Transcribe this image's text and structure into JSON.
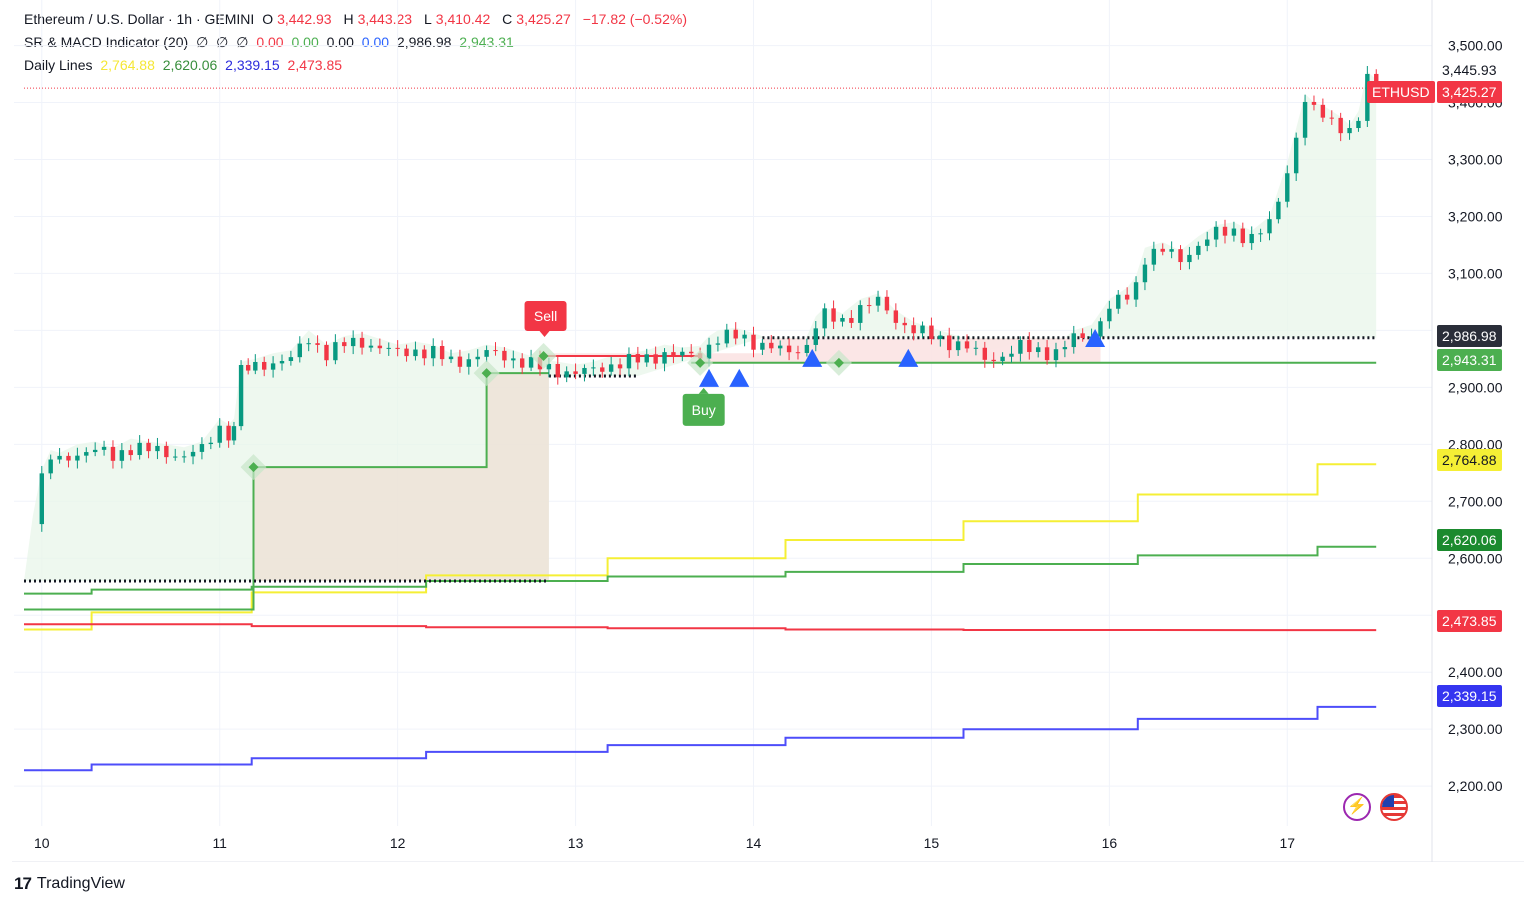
{
  "header": {
    "symbol_line": "Ethereum / U.S. Dollar · 1h · GEMINI",
    "open_label": "O",
    "open": "3,442.93",
    "high_label": "H",
    "high": "3,443.23",
    "low_label": "L",
    "low": "3,410.42",
    "close_label": "C",
    "close": "3,425.27",
    "change": "−17.82 (−0.52%)",
    "indicator1_name": "SR & MACD Indicator (20)",
    "indicator1_values": [
      "∅",
      "∅",
      "∅",
      "0.00",
      "0.00",
      "0.00",
      "0.00",
      "2,986.98",
      "2,943.31"
    ],
    "indicator2_name": "Daily Lines",
    "indicator2_values": [
      "2,764.88",
      "2,620.06",
      "2,339.15",
      "2,473.85"
    ]
  },
  "branding": {
    "logo_text": "TradingView"
  },
  "tags": {
    "ethusd_label": "ETHUSD",
    "ethusd_value": "3,425.27",
    "high_value": "3,445.93",
    "res_value": "2,986.98",
    "sup_value": "2,943.31",
    "yellow_value": "2,764.88",
    "green_value": "2,620.06",
    "red_value": "2,473.85",
    "blue_value": "2,339.15"
  },
  "signals": {
    "sell_label": "Sell",
    "buy_label": "Buy"
  },
  "colors": {
    "up": "#089981",
    "down": "#f23645",
    "yellow": "#f5ef35",
    "green": "#4caf50",
    "red": "#f23645",
    "blue": "#4d4dfa",
    "fill_green": "#e8f5e9",
    "fill_brown": "#ede3d8",
    "fill_red": "#fbe3e3",
    "triangle": "#2962ff"
  },
  "chart_data": {
    "type": "candlestick",
    "x_tick_labels": [
      "10",
      "11",
      "12",
      "13",
      "14",
      "15",
      "16",
      "17"
    ],
    "x_tick_days": [
      10,
      11,
      12,
      13,
      14,
      15,
      16,
      17
    ],
    "x_range_days": [
      9.9,
      17.75
    ],
    "y_tick_labels": [
      "3,500.00",
      "3,400.00",
      "3,300.00",
      "3,200.00",
      "3,100.00",
      "3,000.00",
      "2,900.00",
      "2,800.00",
      "2,700.00",
      "2,600.00",
      "2,500.00",
      "2,400.00",
      "2,300.00",
      "2,200.00"
    ],
    "y_ticks": [
      3500,
      3400,
      3300,
      3200,
      3100,
      3000,
      2900,
      2800,
      2700,
      2600,
      2500,
      2400,
      2300,
      2200
    ],
    "ylim": [
      2130,
      3580
    ],
    "current_price": 3425.27,
    "candle_close_path": [
      [
        9.95,
        2660
      ],
      [
        10.0,
        2740
      ],
      [
        10.05,
        2775
      ],
      [
        10.1,
        2770
      ],
      [
        10.2,
        2785
      ],
      [
        10.3,
        2790
      ],
      [
        10.4,
        2778
      ],
      [
        10.5,
        2795
      ],
      [
        10.6,
        2790
      ],
      [
        10.7,
        2785
      ],
      [
        10.8,
        2780
      ],
      [
        10.9,
        2790
      ],
      [
        11.0,
        2830
      ],
      [
        11.05,
        2820
      ],
      [
        11.08,
        2830
      ],
      [
        11.12,
        2930
      ],
      [
        11.2,
        2935
      ],
      [
        11.3,
        2945
      ],
      [
        11.4,
        2950
      ],
      [
        11.5,
        2985
      ],
      [
        11.6,
        2960
      ],
      [
        11.7,
        2975
      ],
      [
        11.8,
        2980
      ],
      [
        11.9,
        2970
      ],
      [
        12.0,
        2960
      ],
      [
        12.1,
        2965
      ],
      [
        12.2,
        2960
      ],
      [
        12.3,
        2945
      ],
      [
        12.4,
        2950
      ],
      [
        12.5,
        2960
      ],
      [
        12.6,
        2955
      ],
      [
        12.7,
        2945
      ],
      [
        12.8,
        2935
      ],
      [
        12.9,
        2930
      ],
      [
        13.0,
        2925
      ],
      [
        13.1,
        2930
      ],
      [
        13.2,
        2940
      ],
      [
        13.3,
        2945
      ],
      [
        13.4,
        2950
      ],
      [
        13.5,
        2960
      ],
      [
        13.6,
        2955
      ],
      [
        13.7,
        2958
      ],
      [
        13.75,
        2975
      ],
      [
        13.8,
        2985
      ],
      [
        13.9,
        2990
      ],
      [
        14.0,
        2980
      ],
      [
        14.1,
        2970
      ],
      [
        14.2,
        2960
      ],
      [
        14.3,
        2975
      ],
      [
        14.35,
        3010
      ],
      [
        14.4,
        3025
      ],
      [
        14.5,
        3015
      ],
      [
        14.6,
        3040
      ],
      [
        14.7,
        3050
      ],
      [
        14.8,
        3020
      ],
      [
        14.9,
        3000
      ],
      [
        15.0,
        2990
      ],
      [
        15.1,
        2980
      ],
      [
        15.2,
        2970
      ],
      [
        15.3,
        2950
      ],
      [
        15.4,
        2955
      ],
      [
        15.5,
        2970
      ],
      [
        15.6,
        2965
      ],
      [
        15.7,
        2960
      ],
      [
        15.8,
        2985
      ],
      [
        15.9,
        2995
      ],
      [
        16.0,
        3040
      ],
      [
        16.1,
        3060
      ],
      [
        16.15,
        3080
      ],
      [
        16.2,
        3130
      ],
      [
        16.3,
        3140
      ],
      [
        16.4,
        3125
      ],
      [
        16.5,
        3150
      ],
      [
        16.6,
        3170
      ],
      [
        16.7,
        3175
      ],
      [
        16.8,
        3160
      ],
      [
        16.9,
        3185
      ],
      [
        17.0,
        3280
      ],
      [
        17.05,
        3340
      ],
      [
        17.1,
        3400
      ],
      [
        17.15,
        3385
      ],
      [
        17.2,
        3380
      ],
      [
        17.3,
        3360
      ],
      [
        17.35,
        3345
      ],
      [
        17.4,
        3370
      ],
      [
        17.45,
        3440
      ],
      [
        17.5,
        3425
      ]
    ],
    "resistance_levels": [
      {
        "x": [
          9.9,
          12.85
        ],
        "y": 2560
      },
      {
        "x": [
          12.85,
          13.35
        ],
        "y": 2920
      },
      {
        "x": [
          14.05,
          17.5
        ],
        "y": 2986.98
      }
    ],
    "support_steps": [
      [
        9.9,
        2510
      ],
      [
        11.19,
        2510
      ],
      [
        11.19,
        2760
      ],
      [
        12.5,
        2760
      ],
      [
        12.5,
        2925
      ],
      [
        12.85,
        2925
      ]
    ],
    "support_line": {
      "x": [
        13.65,
        17.5
      ],
      "y": 2943.31
    },
    "sell_line": {
      "x": [
        12.8,
        13.7
      ],
      "y": 2955
    },
    "sell_signal": {
      "x": 12.82,
      "y": 2955
    },
    "buy_signal": {
      "x": 13.72,
      "y": 2943
    },
    "diamonds": [
      [
        11.19,
        2760
      ],
      [
        12.5,
        2925
      ],
      [
        12.82,
        2955
      ],
      [
        13.7,
        2943
      ],
      [
        14.48,
        2943
      ]
    ],
    "triangles": [
      [
        13.75,
        2915
      ],
      [
        13.92,
        2915
      ],
      [
        14.33,
        2950
      ],
      [
        14.87,
        2950
      ],
      [
        15.92,
        2985
      ]
    ],
    "daily_series": [
      {
        "color": "yellow",
        "values": [
          [
            9.9,
            2475
          ],
          [
            10.28,
            2475
          ],
          [
            10.28,
            2505
          ],
          [
            11.18,
            2505
          ],
          [
            11.18,
            2540
          ],
          [
            12.16,
            2540
          ],
          [
            12.16,
            2570
          ],
          [
            13.18,
            2570
          ],
          [
            13.18,
            2600
          ],
          [
            14.18,
            2600
          ],
          [
            14.18,
            2632
          ],
          [
            15.18,
            2632
          ],
          [
            15.18,
            2665
          ],
          [
            16.16,
            2665
          ],
          [
            16.16,
            2712
          ],
          [
            17.17,
            2712
          ],
          [
            17.17,
            2764.88
          ],
          [
            17.5,
            2764.88
          ]
        ]
      },
      {
        "color": "green",
        "values": [
          [
            9.9,
            2538
          ],
          [
            10.28,
            2538
          ],
          [
            10.28,
            2545
          ],
          [
            11.18,
            2545
          ],
          [
            11.18,
            2550
          ],
          [
            12.16,
            2550
          ],
          [
            12.16,
            2560
          ],
          [
            13.18,
            2560
          ],
          [
            13.18,
            2568
          ],
          [
            14.18,
            2568
          ],
          [
            14.18,
            2576
          ],
          [
            15.18,
            2576
          ],
          [
            15.18,
            2590
          ],
          [
            16.16,
            2590
          ],
          [
            16.16,
            2605
          ],
          [
            17.17,
            2605
          ],
          [
            17.17,
            2620.06
          ],
          [
            17.5,
            2620.06
          ]
        ]
      },
      {
        "color": "red",
        "values": [
          [
            9.9,
            2484
          ],
          [
            11.18,
            2484
          ],
          [
            11.18,
            2481
          ],
          [
            12.16,
            2481
          ],
          [
            12.16,
            2479
          ],
          [
            13.18,
            2479
          ],
          [
            13.18,
            2477
          ],
          [
            14.18,
            2477
          ],
          [
            14.18,
            2475
          ],
          [
            15.18,
            2475
          ],
          [
            15.18,
            2474
          ],
          [
            17.5,
            2473.85
          ]
        ]
      },
      {
        "color": "blue",
        "values": [
          [
            9.9,
            2228
          ],
          [
            10.28,
            2228
          ],
          [
            10.28,
            2238
          ],
          [
            11.18,
            2238
          ],
          [
            11.18,
            2249
          ],
          [
            12.16,
            2249
          ],
          [
            12.16,
            2260
          ],
          [
            13.18,
            2260
          ],
          [
            13.18,
            2272
          ],
          [
            14.18,
            2272
          ],
          [
            14.18,
            2285
          ],
          [
            15.18,
            2285
          ],
          [
            15.18,
            2300
          ],
          [
            16.16,
            2300
          ],
          [
            16.16,
            2318
          ],
          [
            17.17,
            2318
          ],
          [
            17.17,
            2339.15
          ],
          [
            17.5,
            2339.15
          ]
        ]
      }
    ]
  }
}
